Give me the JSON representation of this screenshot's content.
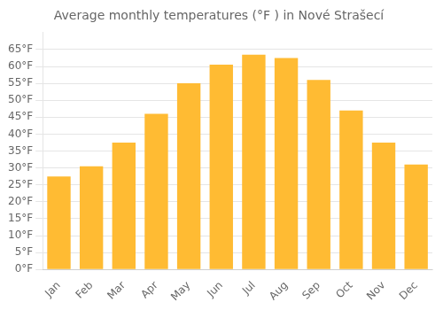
{
  "chart_data": {
    "type": "bar",
    "title": "Average monthly temperatures (°F ) in Nové Strašecí",
    "categories": [
      "Jan",
      "Feb",
      "Mar",
      "Apr",
      "May",
      "Jun",
      "Jul",
      "Aug",
      "Sep",
      "Oct",
      "Nov",
      "Dec"
    ],
    "values": [
      27.5,
      30.5,
      37.5,
      46.0,
      55.0,
      60.5,
      63.5,
      62.5,
      56.0,
      47.0,
      37.5,
      31.0
    ],
    "color": "#FFBB33",
    "ylim": [
      0,
      70
    ],
    "yticks": [
      {
        "value": 0,
        "label": "0°F"
      },
      {
        "value": 5,
        "label": "5°F"
      },
      {
        "value": 10,
        "label": "10°F"
      },
      {
        "value": 15,
        "label": "15°F"
      },
      {
        "value": 20,
        "label": "20°F"
      },
      {
        "value": 25,
        "label": "25°F"
      },
      {
        "value": 30,
        "label": "30°F"
      },
      {
        "value": 35,
        "label": "35°F"
      },
      {
        "value": 40,
        "label": "40°F"
      },
      {
        "value": 45,
        "label": "45°F"
      },
      {
        "value": 50,
        "label": "50°F"
      },
      {
        "value": 55,
        "label": "55°F"
      },
      {
        "value": 60,
        "label": "60°F"
      },
      {
        "value": 65,
        "label": "65°F"
      }
    ],
    "grid": true
  }
}
